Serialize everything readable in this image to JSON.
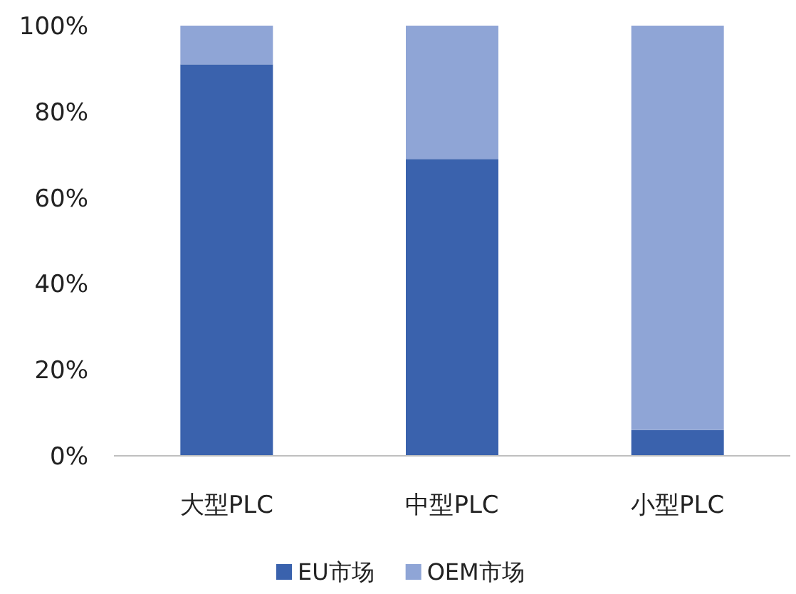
{
  "chart_data": {
    "type": "bar",
    "stacked": true,
    "categories": [
      "大型PLC",
      "中型PLC",
      "小型PLC"
    ],
    "series": [
      {
        "name": "EU市场",
        "color": "#3a62ad",
        "values": [
          91,
          69,
          6
        ]
      },
      {
        "name": "OEM市场",
        "color": "#8fa5d6",
        "values": [
          9,
          31,
          94
        ]
      }
    ],
    "ylim": [
      0,
      100
    ],
    "yticks": [
      {
        "value": 0,
        "label": "0%"
      },
      {
        "value": 20,
        "label": "20%"
      },
      {
        "value": 40,
        "label": "40%"
      },
      {
        "value": 60,
        "label": "60%"
      },
      {
        "value": 80,
        "label": "80%"
      },
      {
        "value": 100,
        "label": "100%"
      }
    ],
    "grid": false,
    "legend": "bottom"
  }
}
